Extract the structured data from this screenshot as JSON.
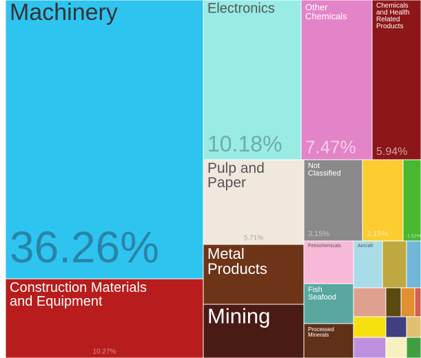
{
  "chart_data": {
    "type": "treemap",
    "categories": [
      "Machinery",
      "Construction Materials and Equipment",
      "Electronics",
      "Other Chemicals",
      "Chemicals and Health Related Products",
      "Pulp and Paper",
      "Not Classified",
      null,
      null,
      "Metal Products",
      "Mining",
      "Petrochemicals",
      "Aircraft",
      null,
      null,
      "Fish Seafood",
      "Processed Minerals",
      null,
      null,
      null,
      null,
      null,
      null,
      null,
      null,
      null,
      null
    ],
    "values": [
      36.26,
      10.27,
      10.18,
      7.47,
      5.94,
      5.71,
      3.15,
      2.15,
      1.52,
      4.05,
      3.6,
      1.4,
      0.9,
      0.76,
      0.46,
      1.3,
      1.1,
      0.63,
      0.29,
      0.27,
      0.12,
      0.45,
      0.29,
      0.2,
      0.45,
      0.29,
      0.2
    ],
    "value_labels": [
      "36.26%",
      "10.27%",
      "10.18%",
      "7.47%",
      "5.94%",
      "5.71%",
      "3.15%",
      "2.15%",
      "1.52%",
      null,
      null,
      null,
      null,
      null,
      null,
      null,
      null,
      null,
      null,
      null,
      null,
      null,
      null,
      null,
      null,
      null,
      null
    ],
    "colors": [
      "#2ec4f0",
      "#b81c1c",
      "#98ece4",
      "#e484c8",
      "#8c1618",
      "#f0e8dc",
      "#8a8a8a",
      "#fccc30",
      "#48b830",
      "#6e3418",
      "#4a1a14",
      "#f8b8d8",
      "#a8dce8",
      "#c0a840",
      "#70b8d8",
      "#58a8a0",
      "#603018",
      "#e0a090",
      "#5a4a10",
      "#e09030",
      "#d06050",
      "#f8e010",
      "#404080",
      "#e0c070",
      "#c090e0",
      "#f8f0c0",
      "#40a040"
    ]
  }
}
